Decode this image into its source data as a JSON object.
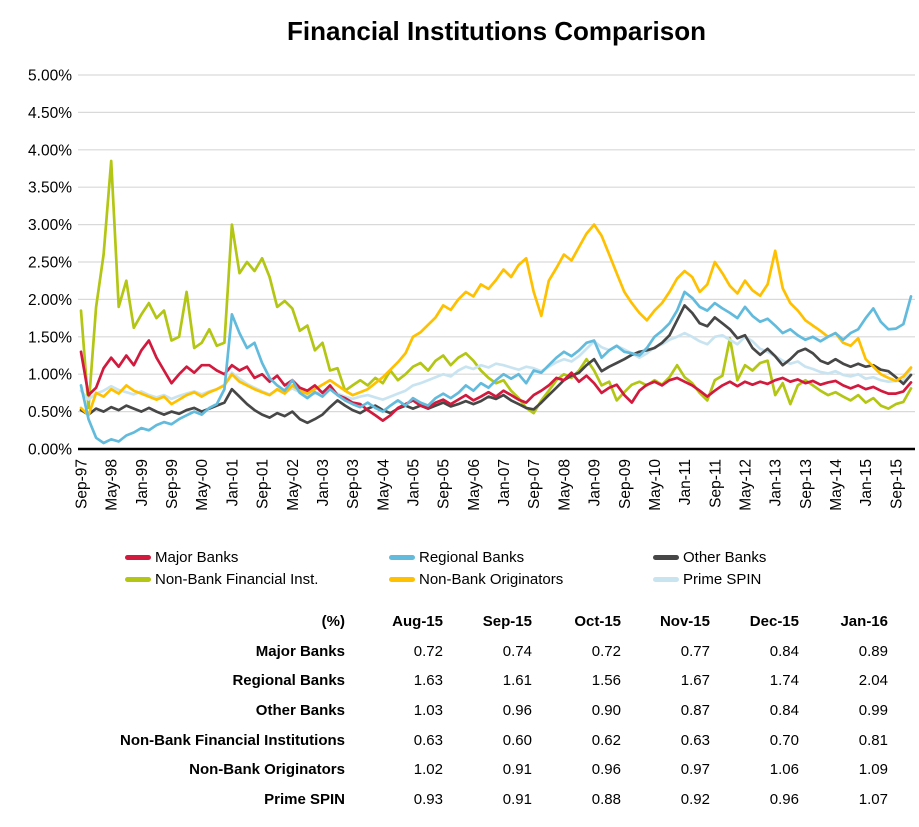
{
  "title": "Financial Institutions Comparison",
  "chart_data": {
    "type": "line",
    "title": "Financial Institutions Comparison",
    "xlabel": "",
    "ylabel": "",
    "ylim": [
      0,
      5
    ],
    "ytick_step": 0.5,
    "y_tick_labels": [
      "0.00%",
      "0.50%",
      "1.00%",
      "1.50%",
      "2.00%",
      "2.50%",
      "3.00%",
      "3.50%",
      "4.00%",
      "4.50%",
      "5.00%"
    ],
    "grid": "horizontal",
    "grid_color": "#D9D9D9",
    "axis_color": "#000000",
    "legend_position": "bottom",
    "x_start_month": 0,
    "x_step_months": 2,
    "x_ticks": [
      {
        "label": "Sep-97",
        "m": 0
      },
      {
        "label": "May-98",
        "m": 8
      },
      {
        "label": "Jan-99",
        "m": 16
      },
      {
        "label": "Sep-99",
        "m": 24
      },
      {
        "label": "May-00",
        "m": 32
      },
      {
        "label": "Jan-01",
        "m": 40
      },
      {
        "label": "Sep-01",
        "m": 48
      },
      {
        "label": "May-02",
        "m": 56
      },
      {
        "label": "Jan-03",
        "m": 64
      },
      {
        "label": "Sep-03",
        "m": 72
      },
      {
        "label": "May-04",
        "m": 80
      },
      {
        "label": "Jan-05",
        "m": 88
      },
      {
        "label": "Sep-05",
        "m": 96
      },
      {
        "label": "May-06",
        "m": 104
      },
      {
        "label": "Jan-07",
        "m": 112
      },
      {
        "label": "Sep-07",
        "m": 120
      },
      {
        "label": "May-08",
        "m": 128
      },
      {
        "label": "Jan-09",
        "m": 136
      },
      {
        "label": "Sep-09",
        "m": 144
      },
      {
        "label": "May-10",
        "m": 152
      },
      {
        "label": "Jan-11",
        "m": 160
      },
      {
        "label": "Sep-11",
        "m": 168
      },
      {
        "label": "May-12",
        "m": 176
      },
      {
        "label": "Jan-13",
        "m": 184
      },
      {
        "label": "Sep-13",
        "m": 192
      },
      {
        "label": "May-14",
        "m": 200
      },
      {
        "label": "Jan-15",
        "m": 208
      },
      {
        "label": "Sep-15",
        "m": 216
      }
    ],
    "draw_order": [
      3,
      5,
      2,
      4,
      0,
      1
    ],
    "series": [
      {
        "name": "Major Banks",
        "color": "#D11A3D",
        "values": [
          1.3,
          0.72,
          0.82,
          1.08,
          1.22,
          1.1,
          1.25,
          1.12,
          1.32,
          1.45,
          1.22,
          1.05,
          0.88,
          1.0,
          1.1,
          1.02,
          1.12,
          1.12,
          1.05,
          1.0,
          1.12,
          1.05,
          1.1,
          0.95,
          1.0,
          0.9,
          0.98,
          0.85,
          0.92,
          0.82,
          0.78,
          0.85,
          0.75,
          0.85,
          0.72,
          0.68,
          0.62,
          0.6,
          0.52,
          0.45,
          0.38,
          0.45,
          0.55,
          0.6,
          0.65,
          0.58,
          0.55,
          0.62,
          0.66,
          0.6,
          0.66,
          0.72,
          0.65,
          0.7,
          0.76,
          0.7,
          0.78,
          0.72,
          0.66,
          0.62,
          0.72,
          0.78,
          0.85,
          0.95,
          0.92,
          1.02,
          0.9,
          0.98,
          0.88,
          0.75,
          0.82,
          0.86,
          0.72,
          0.62,
          0.78,
          0.86,
          0.9,
          0.85,
          0.92,
          0.95,
          0.9,
          0.85,
          0.78,
          0.7,
          0.78,
          0.85,
          0.9,
          0.84,
          0.9,
          0.86,
          0.9,
          0.87,
          0.92,
          0.95,
          0.9,
          0.93,
          0.88,
          0.91,
          0.86,
          0.89,
          0.91,
          0.85,
          0.81,
          0.85,
          0.8,
          0.83,
          0.78,
          0.74,
          0.74,
          0.77,
          0.89
        ]
      },
      {
        "name": "Regional Banks",
        "color": "#62BBDC",
        "values": [
          0.85,
          0.4,
          0.15,
          0.08,
          0.13,
          0.1,
          0.18,
          0.22,
          0.28,
          0.25,
          0.32,
          0.36,
          0.33,
          0.4,
          0.45,
          0.5,
          0.46,
          0.55,
          0.6,
          0.8,
          1.8,
          1.55,
          1.35,
          1.42,
          1.15,
          0.95,
          0.85,
          0.78,
          0.92,
          0.75,
          0.68,
          0.76,
          0.7,
          0.8,
          0.72,
          0.65,
          0.6,
          0.56,
          0.62,
          0.55,
          0.5,
          0.58,
          0.65,
          0.58,
          0.68,
          0.62,
          0.58,
          0.68,
          0.74,
          0.68,
          0.75,
          0.85,
          0.78,
          0.88,
          0.82,
          0.92,
          1.0,
          0.94,
          1.0,
          0.88,
          1.05,
          1.02,
          1.12,
          1.22,
          1.3,
          1.24,
          1.32,
          1.42,
          1.45,
          1.22,
          1.32,
          1.38,
          1.3,
          1.28,
          1.25,
          1.35,
          1.5,
          1.58,
          1.68,
          1.85,
          2.1,
          2.02,
          1.9,
          1.85,
          1.95,
          1.88,
          1.82,
          1.75,
          1.9,
          1.78,
          1.7,
          1.74,
          1.65,
          1.55,
          1.6,
          1.52,
          1.46,
          1.5,
          1.44,
          1.5,
          1.55,
          1.46,
          1.55,
          1.6,
          1.75,
          1.88,
          1.7,
          1.6,
          1.61,
          1.67,
          2.04
        ]
      },
      {
        "name": "Other Banks",
        "color": "#474747",
        "values": [
          0.52,
          0.46,
          0.54,
          0.5,
          0.56,
          0.52,
          0.58,
          0.54,
          0.5,
          0.55,
          0.5,
          0.46,
          0.5,
          0.47,
          0.52,
          0.55,
          0.5,
          0.54,
          0.58,
          0.62,
          0.8,
          0.7,
          0.6,
          0.52,
          0.46,
          0.42,
          0.48,
          0.44,
          0.5,
          0.4,
          0.35,
          0.4,
          0.46,
          0.56,
          0.65,
          0.58,
          0.52,
          0.48,
          0.54,
          0.58,
          0.52,
          0.48,
          0.54,
          0.58,
          0.54,
          0.58,
          0.54,
          0.58,
          0.62,
          0.57,
          0.6,
          0.64,
          0.6,
          0.64,
          0.7,
          0.67,
          0.72,
          0.65,
          0.6,
          0.55,
          0.53,
          0.62,
          0.72,
          0.82,
          0.92,
          0.98,
          1.02,
          1.12,
          1.2,
          1.04,
          1.1,
          1.15,
          1.2,
          1.26,
          1.3,
          1.32,
          1.35,
          1.42,
          1.52,
          1.72,
          1.92,
          1.82,
          1.68,
          1.64,
          1.76,
          1.68,
          1.6,
          1.48,
          1.52,
          1.35,
          1.26,
          1.34,
          1.24,
          1.12,
          1.2,
          1.3,
          1.34,
          1.28,
          1.18,
          1.14,
          1.2,
          1.14,
          1.1,
          1.14,
          1.1,
          1.12,
          1.06,
          1.04,
          0.96,
          0.87,
          0.99
        ]
      },
      {
        "name": "Non-Bank Financial Inst.",
        "color": "#B3C613",
        "values": [
          1.85,
          0.55,
          1.9,
          2.6,
          3.85,
          1.9,
          2.25,
          1.62,
          1.8,
          1.95,
          1.75,
          1.85,
          1.45,
          1.5,
          2.1,
          1.35,
          1.42,
          1.6,
          1.38,
          1.42,
          3.0,
          2.35,
          2.5,
          2.38,
          2.55,
          2.3,
          1.9,
          1.98,
          1.88,
          1.58,
          1.65,
          1.32,
          1.42,
          1.05,
          1.08,
          0.78,
          0.85,
          0.92,
          0.85,
          0.95,
          0.88,
          1.05,
          0.92,
          1.0,
          1.1,
          1.15,
          1.05,
          1.18,
          1.25,
          1.12,
          1.22,
          1.28,
          1.18,
          1.05,
          0.95,
          0.88,
          0.92,
          0.78,
          0.68,
          0.55,
          0.48,
          0.65,
          0.78,
          0.92,
          1.0,
          0.95,
          1.05,
          1.2,
          1.05,
          0.85,
          0.9,
          0.65,
          0.76,
          0.86,
          0.9,
          0.85,
          0.92,
          0.86,
          0.96,
          1.12,
          0.96,
          0.88,
          0.75,
          0.65,
          0.92,
          0.98,
          1.48,
          0.92,
          1.12,
          1.05,
          1.15,
          1.18,
          0.72,
          0.88,
          0.6,
          0.85,
          0.92,
          0.85,
          0.78,
          0.72,
          0.76,
          0.7,
          0.65,
          0.72,
          0.62,
          0.68,
          0.58,
          0.54,
          0.6,
          0.63,
          0.81
        ]
      },
      {
        "name": "Non-Bank Originators",
        "color": "#FFC000",
        "values": [
          0.55,
          0.45,
          0.75,
          0.7,
          0.8,
          0.74,
          0.85,
          0.78,
          0.74,
          0.7,
          0.66,
          0.7,
          0.6,
          0.66,
          0.72,
          0.76,
          0.7,
          0.76,
          0.8,
          0.85,
          1.0,
          0.9,
          0.85,
          0.8,
          0.76,
          0.72,
          0.8,
          0.74,
          0.85,
          0.78,
          0.74,
          0.8,
          0.86,
          0.92,
          0.85,
          0.78,
          0.72,
          0.76,
          0.8,
          0.88,
          0.96,
          1.06,
          1.16,
          1.28,
          1.5,
          1.56,
          1.66,
          1.76,
          1.92,
          1.86,
          2.0,
          2.1,
          2.04,
          2.2,
          2.14,
          2.26,
          2.4,
          2.3,
          2.46,
          2.55,
          2.1,
          1.78,
          2.25,
          2.42,
          2.6,
          2.52,
          2.7,
          2.88,
          3.0,
          2.85,
          2.6,
          2.35,
          2.1,
          1.95,
          1.82,
          1.72,
          1.85,
          1.95,
          2.1,
          2.28,
          2.38,
          2.3,
          2.1,
          2.2,
          2.5,
          2.35,
          2.18,
          2.08,
          2.25,
          2.12,
          2.05,
          2.2,
          2.65,
          2.15,
          1.95,
          1.85,
          1.72,
          1.65,
          1.58,
          1.5,
          1.55,
          1.42,
          1.38,
          1.48,
          1.2,
          1.1,
          1.0,
          0.95,
          0.91,
          0.97,
          1.09
        ]
      },
      {
        "name": "Prime SPIN",
        "color": "#C9E4F1",
        "values": [
          0.78,
          0.66,
          0.74,
          0.78,
          0.84,
          0.79,
          0.76,
          0.73,
          0.77,
          0.72,
          0.69,
          0.72,
          0.67,
          0.71,
          0.74,
          0.77,
          0.73,
          0.77,
          0.8,
          0.86,
          1.02,
          0.94,
          0.87,
          0.82,
          0.77,
          0.73,
          0.79,
          0.75,
          0.81,
          0.76,
          0.71,
          0.74,
          0.77,
          0.8,
          0.74,
          0.7,
          0.67,
          0.7,
          0.72,
          0.69,
          0.66,
          0.7,
          0.74,
          0.78,
          0.85,
          0.88,
          0.92,
          0.96,
          1.0,
          0.97,
          1.05,
          1.1,
          1.07,
          1.12,
          1.09,
          1.14,
          1.12,
          1.09,
          1.06,
          1.1,
          1.08,
          1.04,
          1.1,
          1.16,
          1.2,
          1.17,
          1.24,
          1.34,
          1.44,
          1.36,
          1.32,
          1.38,
          1.33,
          1.28,
          1.22,
          1.28,
          1.36,
          1.4,
          1.46,
          1.5,
          1.55,
          1.5,
          1.44,
          1.4,
          1.5,
          1.52,
          1.46,
          1.4,
          1.5,
          1.44,
          1.34,
          1.3,
          1.24,
          1.18,
          1.14,
          1.17,
          1.1,
          1.07,
          1.03,
          1.01,
          1.04,
          0.99,
          0.97,
          1.0,
          0.94,
          0.96,
          0.92,
          0.9,
          0.91,
          0.92,
          1.07
        ]
      }
    ]
  },
  "table": {
    "header": [
      "(%)",
      "Aug-15",
      "Sep-15",
      "Oct-15",
      "Nov-15",
      "Dec-15",
      "Jan-16"
    ],
    "rows": [
      {
        "label": "Major Banks",
        "values": [
          "0.72",
          "0.74",
          "0.72",
          "0.77",
          "0.84",
          "0.89"
        ]
      },
      {
        "label": "Regional Banks",
        "values": [
          "1.63",
          "1.61",
          "1.56",
          "1.67",
          "1.74",
          "2.04"
        ]
      },
      {
        "label": "Other Banks",
        "values": [
          "1.03",
          "0.96",
          "0.90",
          "0.87",
          "0.84",
          "0.99"
        ]
      },
      {
        "label": "Non-Bank Financial Institutions",
        "values": [
          "0.63",
          "0.60",
          "0.62",
          "0.63",
          "0.70",
          "0.81"
        ]
      },
      {
        "label": "Non-Bank Originators",
        "values": [
          "1.02",
          "0.91",
          "0.96",
          "0.97",
          "1.06",
          "1.09"
        ]
      },
      {
        "label": "Prime SPIN",
        "values": [
          "0.93",
          "0.91",
          "0.88",
          "0.92",
          "0.96",
          "1.07"
        ]
      }
    ]
  }
}
